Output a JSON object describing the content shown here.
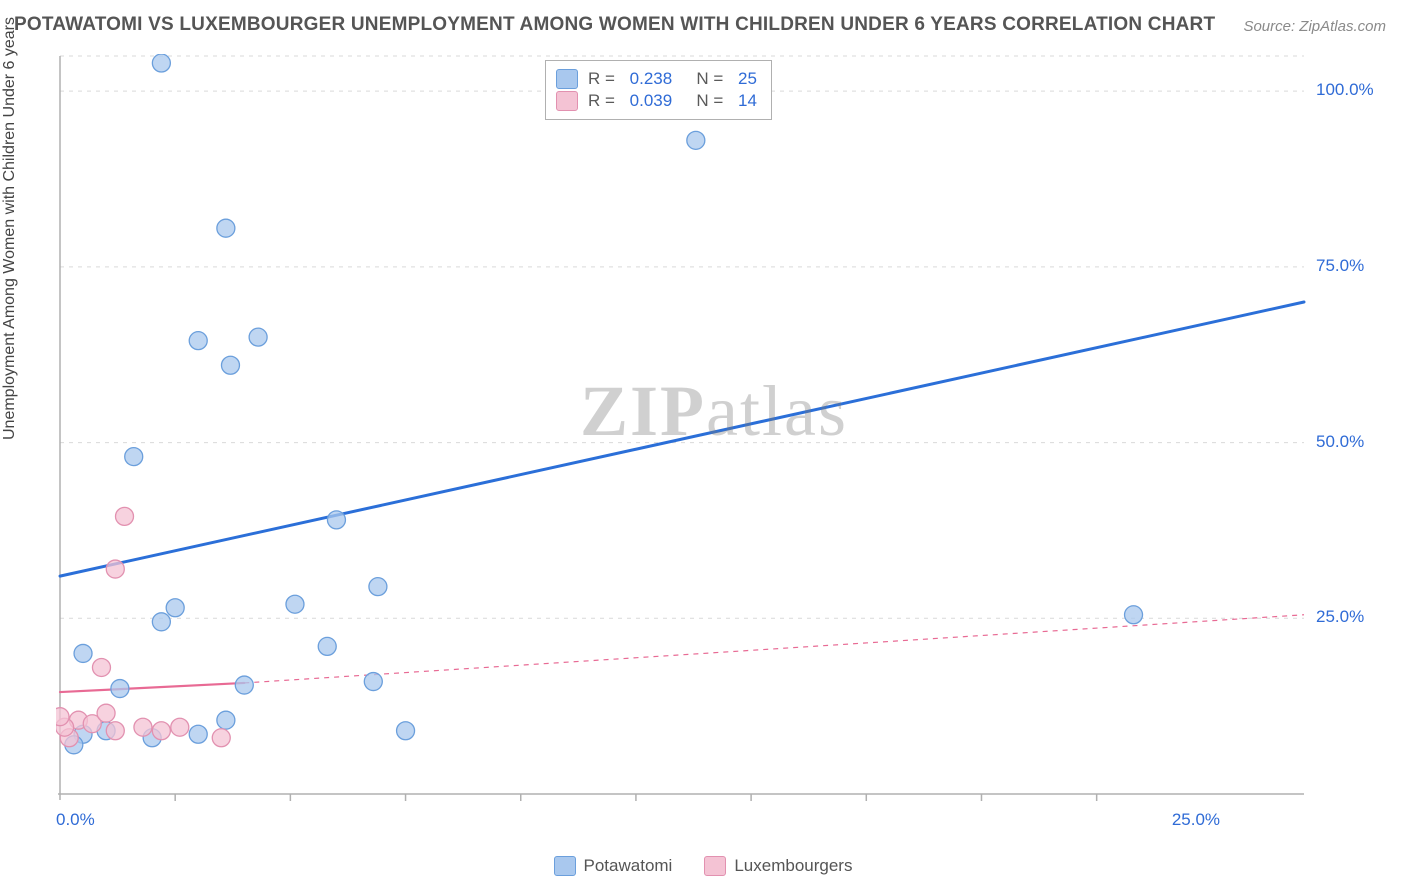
{
  "title": "POTAWATOMI VS LUXEMBOURGER UNEMPLOYMENT AMONG WOMEN WITH CHILDREN UNDER 6 YEARS CORRELATION CHART",
  "source": "Source: ZipAtlas.com",
  "yaxis_label": "Unemployment Among Women with Children Under 6 years",
  "watermark_bold": "ZIP",
  "watermark_rest": "atlas",
  "chart": {
    "type": "scatter",
    "background_color": "#ffffff",
    "grid_color": "#d9d9d9",
    "axis_color": "#b0b0b0",
    "marker_radius": 9,
    "marker_stroke_width": 1.3,
    "xlim": [
      0,
      27
    ],
    "ylim": [
      0,
      105
    ],
    "x_ticks": [
      0.0,
      25.0
    ],
    "x_tick_labels": [
      "0.0%",
      "25.0%"
    ],
    "y_ticks": [
      25.0,
      50.0,
      75.0,
      100.0
    ],
    "y_tick_labels": [
      "25.0%",
      "50.0%",
      "75.0%",
      "100.0%"
    ],
    "x_minor_ticks": [
      2.5,
      5.0,
      7.5,
      10.0,
      12.5,
      15.0,
      17.5,
      20.0,
      22.5
    ],
    "series": [
      {
        "name": "Potawatomi",
        "N": 25,
        "R": 0.238,
        "fill": "#a9c8ee",
        "stroke": "#6b9fdc",
        "trend_color": "#2b6fd8",
        "trend_width": 3,
        "trend_dash_extend": "",
        "points": [
          [
            2.2,
            104.0
          ],
          [
            3.6,
            80.5
          ],
          [
            3.0,
            64.5
          ],
          [
            4.3,
            65.0
          ],
          [
            3.7,
            61.0
          ],
          [
            1.6,
            48.0
          ],
          [
            6.0,
            39.0
          ],
          [
            13.8,
            93.0
          ],
          [
            6.9,
            29.5
          ],
          [
            5.1,
            27.0
          ],
          [
            2.5,
            26.5
          ],
          [
            2.2,
            24.5
          ],
          [
            5.8,
            21.0
          ],
          [
            0.5,
            20.0
          ],
          [
            1.3,
            15.0
          ],
          [
            4.0,
            15.5
          ],
          [
            3.6,
            10.5
          ],
          [
            7.5,
            9.0
          ],
          [
            6.8,
            16.0
          ],
          [
            3.0,
            8.5
          ],
          [
            1.0,
            9.0
          ],
          [
            0.5,
            8.5
          ],
          [
            2.0,
            8.0
          ],
          [
            23.3,
            25.5
          ],
          [
            0.3,
            7.0
          ]
        ],
        "trend_x1": 0.0,
        "trend_y1": 31.0,
        "trend_x2": 27.0,
        "trend_y2": 70.0
      },
      {
        "name": "Luxembourgers",
        "N": 14,
        "R": 0.039,
        "fill": "#f4c3d4",
        "stroke": "#e291b0",
        "trend_color": "#e86a94",
        "trend_width": 2.2,
        "trend_dash_extend": "5,5",
        "points": [
          [
            1.4,
            39.5
          ],
          [
            1.2,
            32.0
          ],
          [
            0.9,
            18.0
          ],
          [
            0.4,
            10.5
          ],
          [
            0.7,
            10.0
          ],
          [
            1.2,
            9.0
          ],
          [
            1.8,
            9.5
          ],
          [
            2.2,
            9.0
          ],
          [
            2.6,
            9.5
          ],
          [
            3.5,
            8.0
          ],
          [
            0.2,
            8.0
          ],
          [
            0.1,
            9.5
          ],
          [
            0.0,
            11.0
          ],
          [
            1.0,
            11.5
          ]
        ],
        "trend_x1": 0.0,
        "trend_y1": 14.5,
        "trend_x2": 4.0,
        "trend_y2": 15.8,
        "trend_ext_x1": 4.0,
        "trend_ext_y1": 15.8,
        "trend_ext_x2": 27.0,
        "trend_ext_y2": 25.5
      }
    ]
  },
  "legend_top": [
    {
      "swatch_fill": "#a9c8ee",
      "swatch_stroke": "#6b9fdc",
      "R": "0.238",
      "N": "25"
    },
    {
      "swatch_fill": "#f4c3d4",
      "swatch_stroke": "#e291b0",
      "R": "0.039",
      "N": "14"
    }
  ],
  "legend_bottom": [
    {
      "swatch_fill": "#a9c8ee",
      "swatch_stroke": "#6b9fdc",
      "label": "Potawatomi"
    },
    {
      "swatch_fill": "#f4c3d4",
      "swatch_stroke": "#e291b0",
      "label": "Luxembourgers"
    }
  ]
}
